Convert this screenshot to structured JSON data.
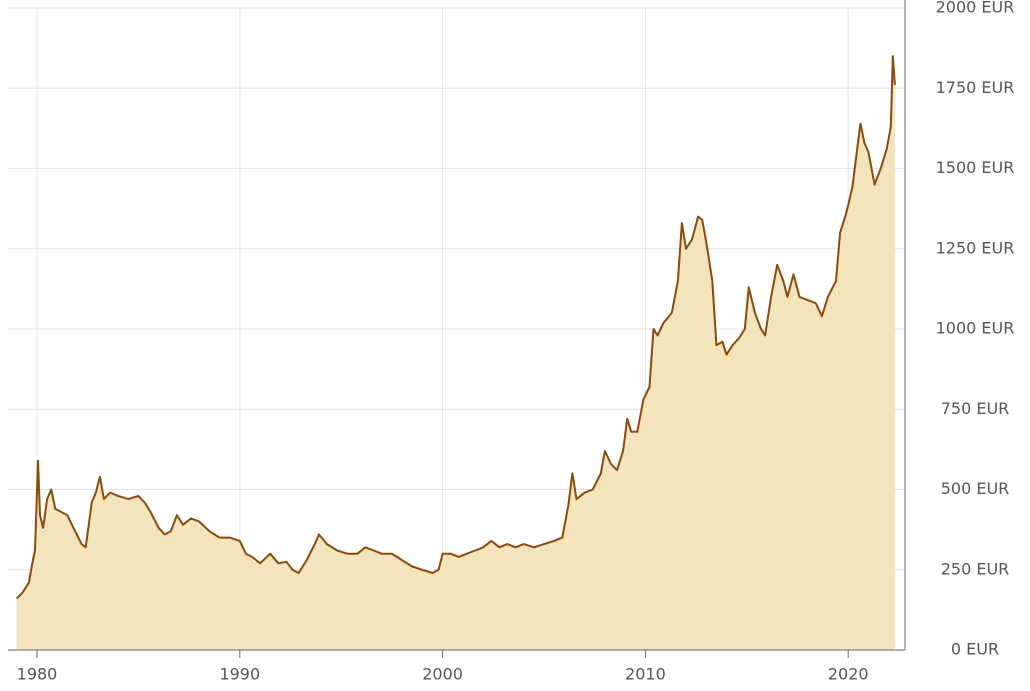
{
  "chart_data": {
    "type": "area",
    "x": [
      1979.0,
      1979.3,
      1979.6,
      1979.8,
      1979.9,
      1980.05,
      1980.15,
      1980.3,
      1980.5,
      1980.7,
      1980.9,
      1981.2,
      1981.5,
      1981.8,
      1982.2,
      1982.4,
      1982.7,
      1982.9,
      1983.1,
      1983.3,
      1983.6,
      1984.0,
      1984.5,
      1985.0,
      1985.3,
      1985.6,
      1986.0,
      1986.3,
      1986.6,
      1986.9,
      1987.2,
      1987.6,
      1988.0,
      1988.5,
      1989.0,
      1989.5,
      1990.0,
      1990.3,
      1990.6,
      1991.0,
      1991.5,
      1991.9,
      1992.3,
      1992.6,
      1992.9,
      1993.3,
      1993.7,
      1993.9,
      1994.3,
      1994.8,
      1995.3,
      1995.8,
      1996.2,
      1996.6,
      1997.0,
      1997.5,
      1998.0,
      1998.5,
      1999.0,
      1999.5,
      1999.8,
      2000.0,
      2000.4,
      2000.8,
      2001.2,
      2001.6,
      2002.0,
      2002.4,
      2002.8,
      2003.2,
      2003.6,
      2004.0,
      2004.5,
      2005.0,
      2005.5,
      2005.9,
      2006.2,
      2006.4,
      2006.6,
      2007.0,
      2007.4,
      2007.8,
      2008.0,
      2008.3,
      2008.6,
      2008.9,
      2009.1,
      2009.3,
      2009.6,
      2009.9,
      2010.2,
      2010.4,
      2010.6,
      2010.9,
      2011.3,
      2011.6,
      2011.8,
      2012.0,
      2012.3,
      2012.6,
      2012.8,
      2013.0,
      2013.3,
      2013.5,
      2013.8,
      2014.0,
      2014.3,
      2014.6,
      2014.9,
      2015.1,
      2015.4,
      2015.7,
      2015.9,
      2016.2,
      2016.5,
      2016.8,
      2017.0,
      2017.3,
      2017.6,
      2018.0,
      2018.4,
      2018.7,
      2019.0,
      2019.4,
      2019.6,
      2019.9,
      2020.2,
      2020.6,
      2020.8,
      2021.0,
      2021.3,
      2021.6,
      2021.9,
      2022.1,
      2022.2,
      2022.3
    ],
    "series": [
      {
        "color": "#8a4a0c",
        "fill": "#f3e4bc",
        "values": [
          160,
          180,
          210,
          280,
          310,
          590,
          420,
          380,
          470,
          500,
          440,
          430,
          420,
          380,
          330,
          320,
          460,
          490,
          540,
          470,
          490,
          480,
          470,
          480,
          460,
          430,
          380,
          360,
          370,
          420,
          390,
          410,
          400,
          370,
          350,
          350,
          340,
          300,
          290,
          270,
          300,
          270,
          275,
          250,
          240,
          280,
          330,
          360,
          330,
          310,
          300,
          300,
          320,
          310,
          300,
          300,
          280,
          260,
          250,
          240,
          250,
          300,
          300,
          290,
          300,
          310,
          320,
          340,
          320,
          330,
          320,
          330,
          320,
          330,
          340,
          350,
          450,
          550,
          470,
          490,
          500,
          550,
          620,
          580,
          560,
          620,
          720,
          680,
          680,
          780,
          820,
          1000,
          980,
          1020,
          1050,
          1150,
          1330,
          1250,
          1280,
          1350,
          1340,
          1270,
          1150,
          950,
          960,
          920,
          950,
          970,
          1000,
          1130,
          1050,
          1000,
          980,
          1100,
          1200,
          1150,
          1100,
          1170,
          1100,
          1090,
          1080,
          1040,
          1100,
          1150,
          1300,
          1360,
          1440,
          1640,
          1580,
          1550,
          1450,
          1500,
          1560,
          1630,
          1850,
          1760
        ]
      }
    ],
    "xlim": [
      1978.57,
      2022.8
    ],
    "ylim": [
      0,
      2000
    ],
    "xticks": [
      1980,
      1990,
      2000,
      2010,
      2020
    ],
    "yticks": [
      {
        "value": 0,
        "label": "0 EUR"
      },
      {
        "value": 250,
        "label": "250 EUR"
      },
      {
        "value": 500,
        "label": "500 EUR"
      },
      {
        "value": 750,
        "label": "750 EUR"
      },
      {
        "value": 1000,
        "label": "1000 EUR"
      },
      {
        "value": 1250,
        "label": "1250 EUR"
      },
      {
        "value": 1500,
        "label": "1500 EUR"
      },
      {
        "value": 1750,
        "label": "1750 EUR"
      },
      {
        "value": 2000,
        "label": "2000 EUR"
      }
    ],
    "grid": true
  }
}
